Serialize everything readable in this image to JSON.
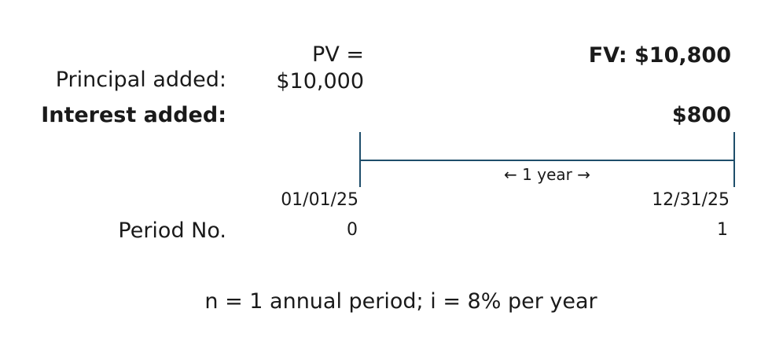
{
  "present_value": {
    "label": "PV =",
    "value": "$10,000"
  },
  "future_value": {
    "label": "FV: $10,800"
  },
  "rows": {
    "principal_label": "Principal added:",
    "interest_label": "Interest added:",
    "interest_value": "$800"
  },
  "timeline": {
    "span_label": "← 1 year →",
    "start_date": "01/01/25",
    "end_date": "12/31/25",
    "period_label": "Period No.",
    "start_period": "0",
    "end_period": "1",
    "line_color": "#1f4e6b"
  },
  "footer": {
    "note": "n = 1 annual period; i = 8% per year"
  }
}
